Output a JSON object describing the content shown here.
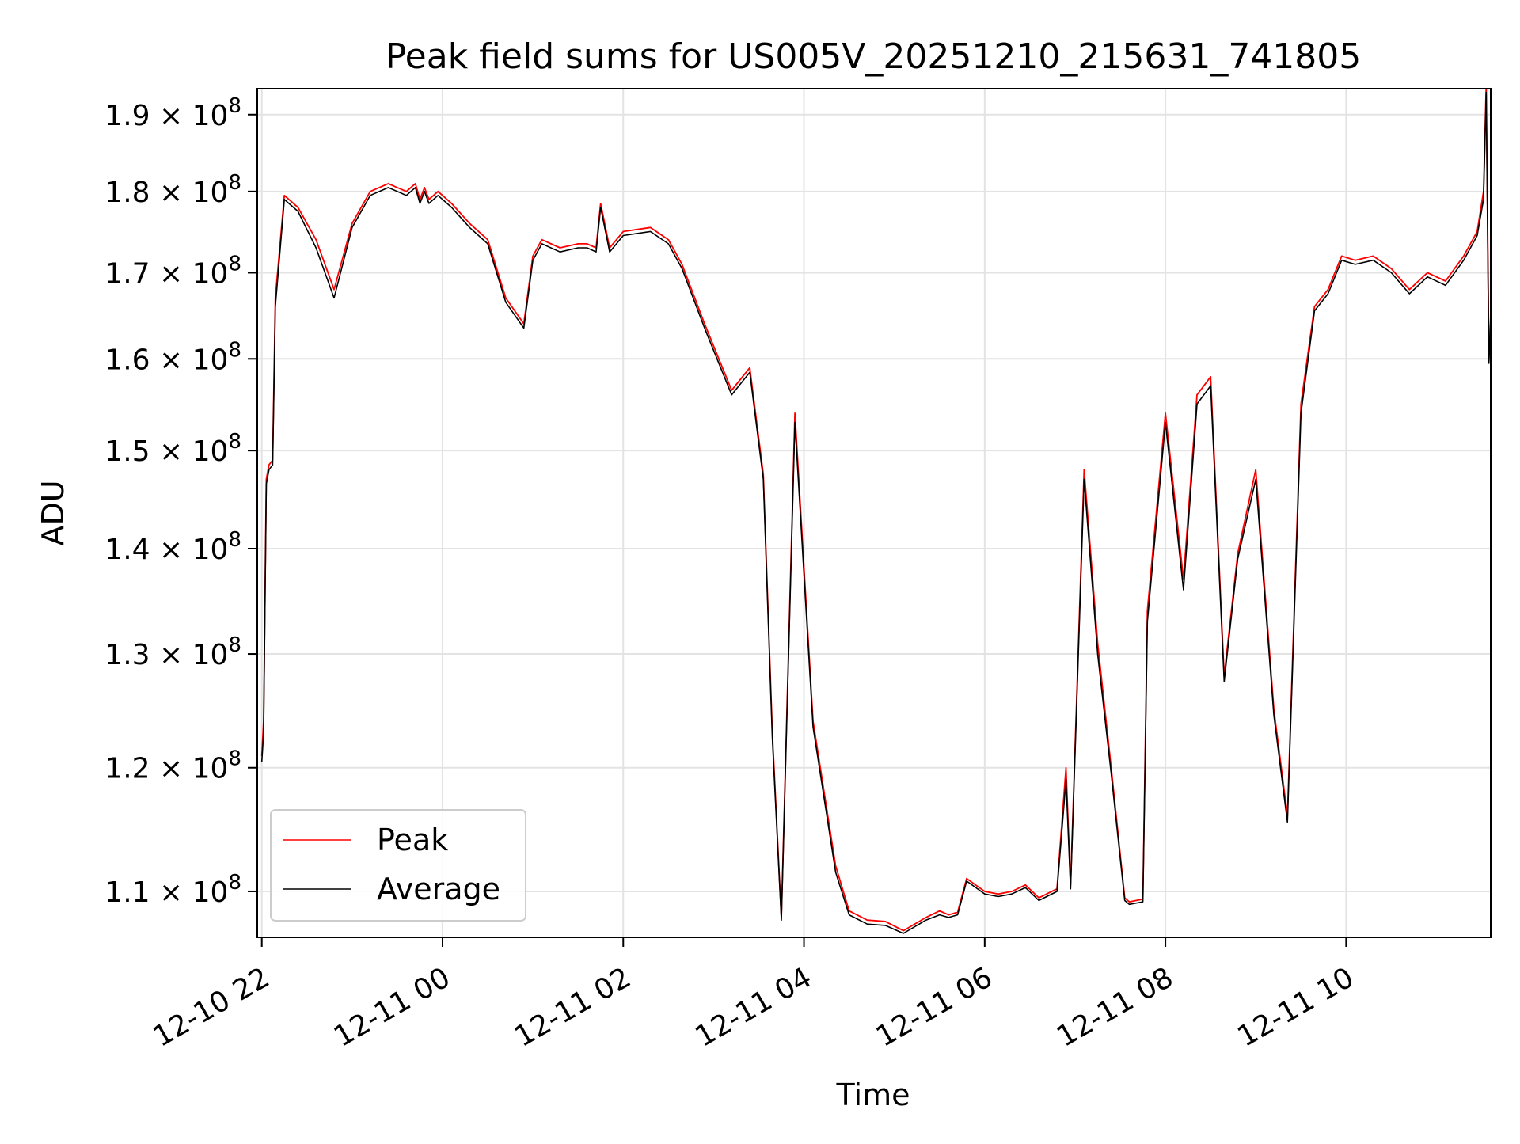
{
  "chart_data": {
    "type": "line",
    "title": "Peak field sums for US005V_20251210_215631_741805",
    "xlabel": "Time",
    "ylabel": "ADU",
    "y_scale": "log",
    "grid": true,
    "legend_position": "lower-left",
    "x_tick_labels": [
      "12-10 22",
      "12-11 00",
      "12-11 02",
      "12-11 04",
      "12-11 06",
      "12-11 08",
      "12-11 10"
    ],
    "x_ticks_hours": [
      0,
      2,
      4,
      6,
      8,
      10,
      12
    ],
    "xlim_hours": [
      -0.05,
      13.6
    ],
    "y_ticks": [
      {
        "value": 110000000,
        "mantissa": "1.1",
        "base": "10",
        "exponent": "8"
      },
      {
        "value": 120000000,
        "mantissa": "1.2",
        "base": "10",
        "exponent": "8"
      },
      {
        "value": 130000000,
        "mantissa": "1.3",
        "base": "10",
        "exponent": "8"
      },
      {
        "value": 140000000,
        "mantissa": "1.4",
        "base": "10",
        "exponent": "8"
      },
      {
        "value": 150000000,
        "mantissa": "1.5",
        "base": "10",
        "exponent": "8"
      },
      {
        "value": 160000000,
        "mantissa": "1.6",
        "base": "10",
        "exponent": "8"
      },
      {
        "value": 170000000,
        "mantissa": "1.7",
        "base": "10",
        "exponent": "8"
      },
      {
        "value": 180000000,
        "mantissa": "1.8",
        "base": "10",
        "exponent": "8"
      },
      {
        "value": 190000000,
        "mantissa": "1.9",
        "base": "10",
        "exponent": "8"
      }
    ],
    "ylim": [
      106500000,
      193500000
    ],
    "x_hours": [
      0.0,
      0.02,
      0.05,
      0.08,
      0.12,
      0.15,
      0.25,
      0.3,
      0.4,
      0.6,
      0.8,
      1.0,
      1.2,
      1.4,
      1.5,
      1.6,
      1.7,
      1.75,
      1.8,
      1.85,
      1.95,
      2.1,
      2.3,
      2.5,
      2.7,
      2.9,
      3.0,
      3.1,
      3.3,
      3.5,
      3.6,
      3.7,
      3.75,
      3.85,
      4.0,
      4.3,
      4.5,
      4.65,
      4.9,
      5.2,
      5.4,
      5.55,
      5.65,
      5.75,
      5.9,
      6.1,
      6.35,
      6.5,
      6.7,
      6.9,
      7.1,
      7.35,
      7.5,
      7.6,
      7.7,
      7.8,
      8.0,
      8.15,
      8.3,
      8.45,
      8.6,
      8.8,
      8.9,
      8.95,
      9.1,
      9.25,
      9.4,
      9.55,
      9.6,
      9.75,
      9.8,
      10.0,
      10.2,
      10.35,
      10.5,
      10.65,
      10.8,
      11.0,
      11.2,
      11.35,
      11.5,
      11.65,
      11.8,
      11.95,
      12.1,
      12.3,
      12.5,
      12.7,
      12.9,
      13.1,
      13.3,
      13.45,
      13.52,
      13.55,
      13.58,
      13.6
    ],
    "series": [
      {
        "name": "Peak",
        "color": "#ff0000",
        "values": [
          121000000,
          124000000,
          147000000,
          148500000,
          149000000,
          167000000,
          179500000,
          179000000,
          178000000,
          174000000,
          168000000,
          176000000,
          180000000,
          181000000,
          180500000,
          180000000,
          181000000,
          179000000,
          180500000,
          179000000,
          180000000,
          178500000,
          176000000,
          174000000,
          167000000,
          164000000,
          172000000,
          174000000,
          173000000,
          173500000,
          173500000,
          173000000,
          178500000,
          173000000,
          175000000,
          175500000,
          174000000,
          171000000,
          164000000,
          156500000,
          159000000,
          147500000,
          123000000,
          108000000,
          154000000,
          124000000,
          112000000,
          108500000,
          107800000,
          107700000,
          107000000,
          108000000,
          108500000,
          108200000,
          108400000,
          111000000,
          110000000,
          109800000,
          110000000,
          110500000,
          109500000,
          110200000,
          120000000,
          110500000,
          148000000,
          131000000,
          120000000,
          109500000,
          109200000,
          109400000,
          134000000,
          154000000,
          137000000,
          156000000,
          158000000,
          128000000,
          139500000,
          148000000,
          125000000,
          116000000,
          155000000,
          166000000,
          168000000,
          172000000,
          171500000,
          172000000,
          170500000,
          168000000,
          170000000,
          169000000,
          172000000,
          175000000,
          180000000,
          194000000,
          160000000,
          165000000
        ]
      },
      {
        "name": "Average",
        "color": "#000000",
        "values": [
          120500000,
          123000000,
          146500000,
          148000000,
          148500000,
          166000000,
          179000000,
          178500000,
          177500000,
          173000000,
          167000000,
          175500000,
          179500000,
          180500000,
          180000000,
          179500000,
          180500000,
          178500000,
          180000000,
          178500000,
          179500000,
          178000000,
          175500000,
          173500000,
          166500000,
          163500000,
          171500000,
          173500000,
          172500000,
          173000000,
          173000000,
          172500000,
          178000000,
          172500000,
          174500000,
          175000000,
          173500000,
          170500000,
          163500000,
          156000000,
          158500000,
          147000000,
          122500000,
          107800000,
          153000000,
          123500000,
          111500000,
          108200000,
          107500000,
          107400000,
          106800000,
          107800000,
          108200000,
          108000000,
          108200000,
          110800000,
          109800000,
          109600000,
          109800000,
          110300000,
          109300000,
          110000000,
          119000000,
          110200000,
          147000000,
          130000000,
          119500000,
          109300000,
          109000000,
          109200000,
          133000000,
          153000000,
          136000000,
          155000000,
          157000000,
          127500000,
          139000000,
          147000000,
          124500000,
          115500000,
          154000000,
          165500000,
          167500000,
          171500000,
          171000000,
          171500000,
          170000000,
          167500000,
          169500000,
          168500000,
          171500000,
          174500000,
          179000000,
          193000000,
          159500000,
          164500000
        ]
      }
    ]
  }
}
